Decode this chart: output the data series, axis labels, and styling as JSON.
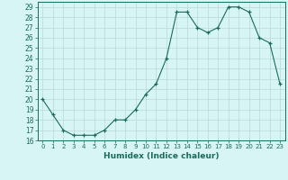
{
  "x": [
    0,
    1,
    2,
    3,
    4,
    5,
    6,
    7,
    8,
    9,
    10,
    11,
    12,
    13,
    14,
    15,
    16,
    17,
    18,
    19,
    20,
    21,
    22,
    23
  ],
  "y": [
    20,
    18.5,
    17,
    16.5,
    16.5,
    16.5,
    17,
    18,
    18,
    19,
    20.5,
    21.5,
    24,
    28.5,
    28.5,
    27,
    26.5,
    27,
    29,
    29,
    28.5,
    26,
    25.5,
    21.5
  ],
  "xlabel": "Humidex (Indice chaleur)",
  "xlim": [
    -0.5,
    23.5
  ],
  "ylim": [
    16,
    29.5
  ],
  "yticks": [
    16,
    17,
    18,
    19,
    20,
    21,
    22,
    23,
    24,
    25,
    26,
    27,
    28,
    29
  ],
  "xticks": [
    0,
    1,
    2,
    3,
    4,
    5,
    6,
    7,
    8,
    9,
    10,
    11,
    12,
    13,
    14,
    15,
    16,
    17,
    18,
    19,
    20,
    21,
    22,
    23
  ],
  "line_color": "#1a6b5a",
  "marker": "+",
  "bg_color": "#d8f5f5",
  "grid_color": "#b8d8d8",
  "label_color": "#1a6b5a",
  "tick_color": "#1a6b5a"
}
